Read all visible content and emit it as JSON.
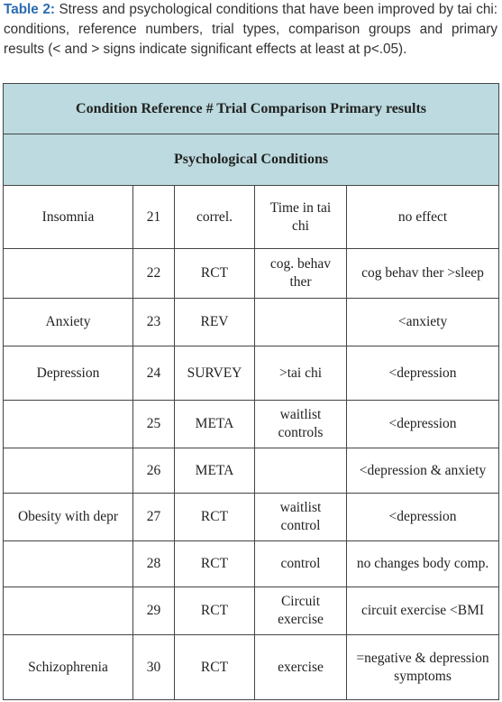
{
  "caption": {
    "label": "Table 2:",
    "text": "Stress and psychological conditions that have been improved by tai chi: conditions, reference numbers, trial types, comparison groups and primary results (< and > signs indicate significant effects at least at p<.05)."
  },
  "table": {
    "header": "Condition Reference # Trial Comparison Primary results",
    "section": "Psychological Conditions",
    "rows": [
      {
        "condition": "Insomnia",
        "ref": 21,
        "trial": "correl.",
        "comparison": "Time in tai chi",
        "result": "no effect"
      },
      {
        "ref": 22,
        "trial": "RCT",
        "comparison": "cog. behav ther",
        "result": "cog behav ther >sleep"
      },
      {
        "condition": "Anxiety",
        "ref": 23,
        "trial": "REV",
        "result": "<anxiety"
      },
      {
        "condition": "Depression",
        "ref": 24,
        "trial": "SURVEY",
        "comparison": ">tai chi",
        "result": "<depression"
      },
      {
        "ref": 25,
        "trial": "META",
        "comparison": "waitlist controls",
        "result": "<depression"
      },
      {
        "ref": 26,
        "trial": "META",
        "result": "<depression & anxiety"
      },
      {
        "condition": "Obesity with depr",
        "ref": 27,
        "trial": "RCT",
        "comparison": "waitlist control",
        "result": "<depression"
      },
      {
        "ref": 28,
        "trial": "RCT",
        "comparison": "control",
        "result": "no changes body comp."
      },
      {
        "ref": 29,
        "trial": "RCT",
        "comparison": "Circuit exercise",
        "result": "circuit exercise <BMI"
      },
      {
        "condition": "Schizophrenia",
        "ref": 30,
        "trial": "RCT",
        "comparison": "exercise",
        "result": "=negative & depression symptoms"
      }
    ]
  }
}
